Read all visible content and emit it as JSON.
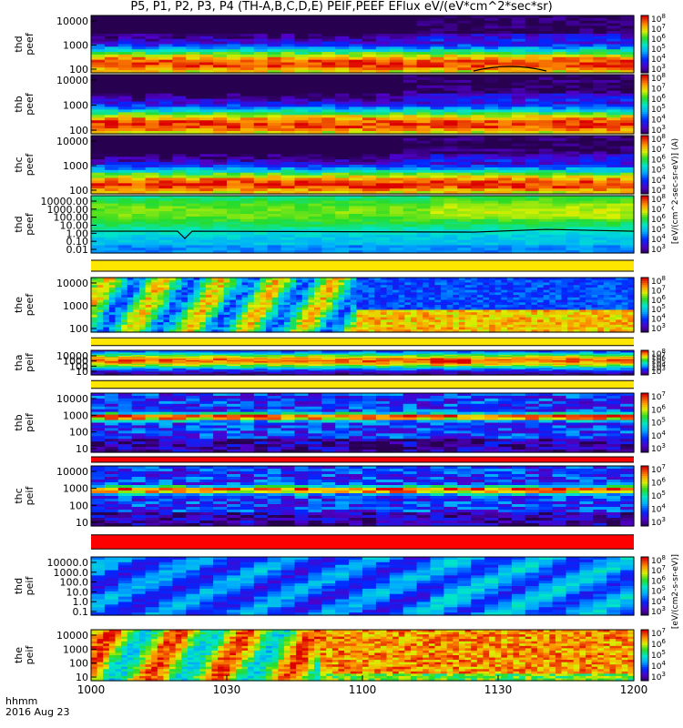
{
  "title": "P5, P1, P2, P3, P4 (TH-A,B,C,D,E) PEIF,PEEF EFlux eV/(eV*cm^2*sec*sr)",
  "time_axis": {
    "label_line1": "hhmm",
    "label_line2": "2016 Aug 23",
    "ticks": [
      "1000",
      "1030",
      "1100",
      "1130",
      "1200"
    ]
  },
  "colorbar_labels": {
    "top": "[eV/(cm^2-sec-sr-eV)] (A)",
    "bottom": "[eV/(cm2-s-sr-eV)]"
  },
  "colors": {
    "ring_red": "#ff0000",
    "ring_yellow": "#ffe600",
    "curve": "#000000"
  },
  "chart_data": {
    "type": "heatmap",
    "x_range_minutes_of_day": [
      600,
      720
    ],
    "colorscale": "rainbow (purple-blue-cyan-green-yellow-red)",
    "panels": [
      {
        "name": "thd peef",
        "ylabel": [
          "thd",
          "peef"
        ],
        "yticks": [
          "10000",
          "1000",
          "100"
        ],
        "cbar_ticks": [
          "10^3",
          "10^4",
          "10^5",
          "10^6",
          "10^7",
          "10^8"
        ],
        "profile": "electron_hot",
        "separator": "none"
      },
      {
        "name": "thb peef",
        "ylabel": [
          "thb",
          "peef"
        ],
        "yticks": [
          "10000",
          "1000",
          "100"
        ],
        "cbar_ticks": [
          "10^3",
          "10^4",
          "10^5",
          "10^6",
          "10^7",
          "10^8"
        ],
        "profile": "electron_hot",
        "separator": "none"
      },
      {
        "name": "thc peef",
        "ylabel": [
          "thc",
          "peef"
        ],
        "yticks": [
          "10000",
          "1000",
          "100"
        ],
        "cbar_ticks": [
          "10^3",
          "10^4",
          "10^5",
          "10^6",
          "10^7",
          "10^8"
        ],
        "profile": "electron_hot",
        "separator": "none"
      },
      {
        "name": "thd peef",
        "ylabel": [
          "thd",
          "peef"
        ],
        "yticks": [
          "10000.00",
          "1000.00",
          "100.00",
          "10.00",
          "1.00",
          "0.10",
          "0.01"
        ],
        "cbar_ticks": [
          "10^3",
          "10^4",
          "10^5",
          "10^6",
          "10^7",
          "10^8"
        ],
        "profile": "electron_flat",
        "separator": "none"
      },
      {
        "name": "the peef",
        "ylabel": [
          "the",
          "peef"
        ],
        "yticks": [
          "10000",
          "1000",
          "100"
        ],
        "cbar_ticks": [
          "10^3",
          "10^4",
          "10^5",
          "10^6",
          "10^7",
          "10^8"
        ],
        "profile": "electron_the",
        "separator": "yellow"
      },
      {
        "name": "tha peif",
        "ylabel": [
          "tha",
          "peif"
        ],
        "yticks": [
          "10000",
          "1000",
          "100",
          "10"
        ],
        "cbar_ticks": [
          "10^3",
          "10^4",
          "10^5",
          "10^6",
          "10^7",
          "10^8"
        ],
        "profile": "ion_wide",
        "separator": "yellow"
      },
      {
        "name": "thb peif",
        "ylabel": [
          "thb",
          "peif"
        ],
        "yticks": [
          "10000",
          "1000",
          "100",
          "10"
        ],
        "cbar_ticks": [
          "10^3",
          "10^4",
          "10^5",
          "10^6",
          "10^7"
        ],
        "profile": "ion_band",
        "separator": "yellow"
      },
      {
        "name": "thc peif",
        "ylabel": [
          "thc",
          "peif"
        ],
        "yticks": [
          "10000",
          "1000",
          "100",
          "10"
        ],
        "cbar_ticks": [
          "10^3",
          "10^4",
          "10^5",
          "10^6",
          "10^7"
        ],
        "profile": "ion_band",
        "separator": "red"
      },
      {
        "name": "thd peif",
        "ylabel": [
          "thd",
          "peif"
        ],
        "yticks": [
          "10000.0",
          "1000.0",
          "100.0",
          "10.0",
          "1.0",
          "0.1"
        ],
        "cbar_ticks": [
          "10^3",
          "10^4",
          "10^5",
          "10^6",
          "10^7",
          "10^8"
        ],
        "profile": "ion_cold",
        "separator": "red"
      },
      {
        "name": "the peif",
        "ylabel": [
          "the",
          "peif"
        ],
        "yticks": [
          "10000",
          "1000",
          "100",
          "10"
        ],
        "cbar_ticks": [
          "10^3",
          "10^4",
          "10^5",
          "10^6",
          "10^7"
        ],
        "profile": "ion_the",
        "separator": "none"
      }
    ]
  }
}
